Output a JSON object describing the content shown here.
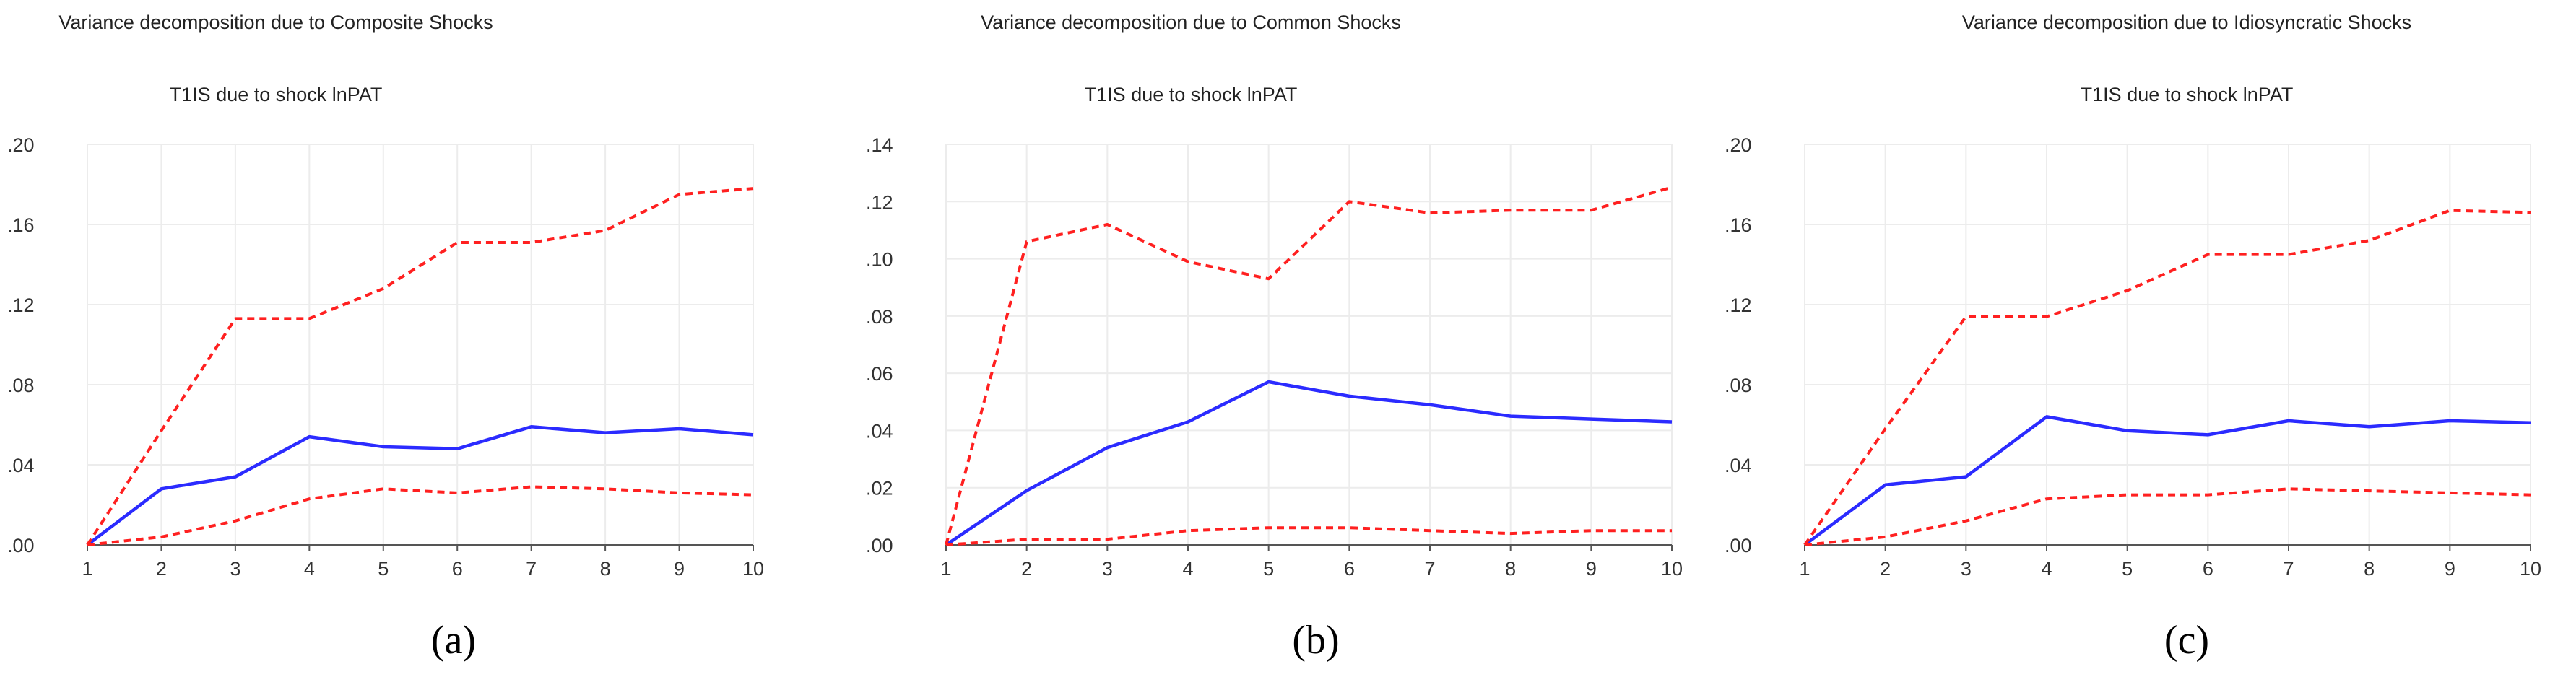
{
  "chart_data": [
    {
      "type": "line",
      "title": "Variance decomposition due to Composite Shocks",
      "subtitle": "T1IS due to shock lnPAT",
      "caption": "(a)",
      "x": [
        1,
        2,
        3,
        4,
        5,
        6,
        7,
        8,
        9,
        10
      ],
      "xticks": [
        "1",
        "2",
        "3",
        "4",
        "5",
        "6",
        "7",
        "8",
        "9",
        "10"
      ],
      "ylim": [
        0,
        0.2
      ],
      "yticks": [
        0,
        0.04,
        0.08,
        0.12,
        0.16,
        0.2
      ],
      "ytick_labels": [
        ".00",
        ".04",
        ".08",
        ".12",
        ".16",
        ".20"
      ],
      "grid": true,
      "series": [
        {
          "role": "estimate",
          "color": "#2b2bff",
          "dash": false,
          "values": [
            0.0,
            0.028,
            0.034,
            0.054,
            0.049,
            0.048,
            0.059,
            0.056,
            0.058,
            0.055
          ]
        },
        {
          "role": "upper",
          "color": "#ff2020",
          "dash": true,
          "values": [
            0.0,
            0.057,
            0.113,
            0.113,
            0.128,
            0.151,
            0.151,
            0.157,
            0.175,
            0.178
          ]
        },
        {
          "role": "lower",
          "color": "#ff2020",
          "dash": true,
          "values": [
            0.0,
            0.004,
            0.012,
            0.023,
            0.028,
            0.026,
            0.029,
            0.028,
            0.026,
            0.025
          ]
        }
      ]
    },
    {
      "type": "line",
      "title": "Variance decomposition due to Common Shocks",
      "subtitle": "T1IS due to shock lnPAT",
      "caption": "(b)",
      "x": [
        1,
        2,
        3,
        4,
        5,
        6,
        7,
        8,
        9,
        10
      ],
      "xticks": [
        "1",
        "2",
        "3",
        "4",
        "5",
        "6",
        "7",
        "8",
        "9",
        "10"
      ],
      "ylim": [
        0,
        0.14
      ],
      "yticks": [
        0,
        0.02,
        0.04,
        0.06,
        0.08,
        0.1,
        0.12,
        0.14
      ],
      "ytick_labels": [
        ".00",
        ".02",
        ".04",
        ".06",
        ".08",
        ".10",
        ".12",
        ".14"
      ],
      "grid": true,
      "series": [
        {
          "role": "estimate",
          "color": "#2b2bff",
          "dash": false,
          "values": [
            0.0,
            0.019,
            0.034,
            0.043,
            0.057,
            0.052,
            0.049,
            0.045,
            0.044,
            0.043
          ]
        },
        {
          "role": "upper",
          "color": "#ff2020",
          "dash": true,
          "values": [
            0.0,
            0.106,
            0.112,
            0.099,
            0.093,
            0.12,
            0.116,
            0.117,
            0.117,
            0.125
          ]
        },
        {
          "role": "lower",
          "color": "#ff2020",
          "dash": true,
          "values": [
            0.0,
            0.002,
            0.002,
            0.005,
            0.006,
            0.006,
            0.005,
            0.004,
            0.005,
            0.005
          ]
        }
      ]
    },
    {
      "type": "line",
      "title": "Variance decomposition due to Idiosyncratic Shocks",
      "subtitle": "T1IS due to shock lnPAT",
      "caption": "(c)",
      "x": [
        1,
        2,
        3,
        4,
        5,
        6,
        7,
        8,
        9,
        10
      ],
      "xticks": [
        "1",
        "2",
        "3",
        "4",
        "5",
        "6",
        "7",
        "8",
        "9",
        "10"
      ],
      "ylim": [
        0,
        0.2
      ],
      "yticks": [
        0,
        0.04,
        0.08,
        0.12,
        0.16,
        0.2
      ],
      "ytick_labels": [
        ".00",
        ".04",
        ".08",
        ".12",
        ".16",
        ".20"
      ],
      "grid": true,
      "series": [
        {
          "role": "estimate",
          "color": "#2b2bff",
          "dash": false,
          "values": [
            0.0,
            0.03,
            0.034,
            0.064,
            0.057,
            0.055,
            0.062,
            0.059,
            0.062,
            0.061
          ]
        },
        {
          "role": "upper",
          "color": "#ff2020",
          "dash": true,
          "values": [
            0.0,
            0.058,
            0.114,
            0.114,
            0.127,
            0.145,
            0.145,
            0.152,
            0.167,
            0.166
          ]
        },
        {
          "role": "lower",
          "color": "#ff2020",
          "dash": true,
          "values": [
            0.0,
            0.004,
            0.012,
            0.023,
            0.025,
            0.025,
            0.028,
            0.027,
            0.026,
            0.025
          ]
        }
      ]
    }
  ]
}
